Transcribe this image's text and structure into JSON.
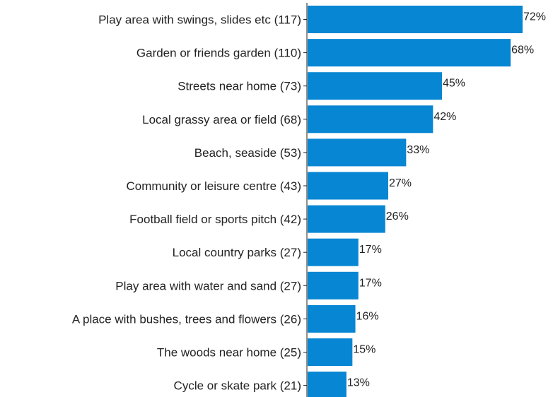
{
  "chart_data": {
    "type": "bar",
    "orientation": "horizontal",
    "categories": [
      "Play area with swings, slides etc (117)",
      "Garden or friends garden (110)",
      "Streets near home (73)",
      "Local grassy area or field (68)",
      "Beach, seaside (53)",
      "Community or leisure centre (43)",
      "Football field or sports pitch (42)",
      "Local country parks (27)",
      "Play area with water and sand (27)",
      "A place with bushes, trees and flowers (26)",
      "The woods near home (25)",
      "Cycle or skate park (21)"
    ],
    "values": [
      72,
      68,
      45,
      42,
      33,
      27,
      26,
      17,
      17,
      16,
      15,
      13
    ],
    "value_labels": [
      "72%",
      "68%",
      "45%",
      "42%",
      "33%",
      "27%",
      "26%",
      "17%",
      "17%",
      "16%",
      "15%",
      "13%"
    ],
    "unit": "%",
    "xlim": [
      0,
      72
    ],
    "grid": false,
    "bar_color": "#0786d3"
  }
}
